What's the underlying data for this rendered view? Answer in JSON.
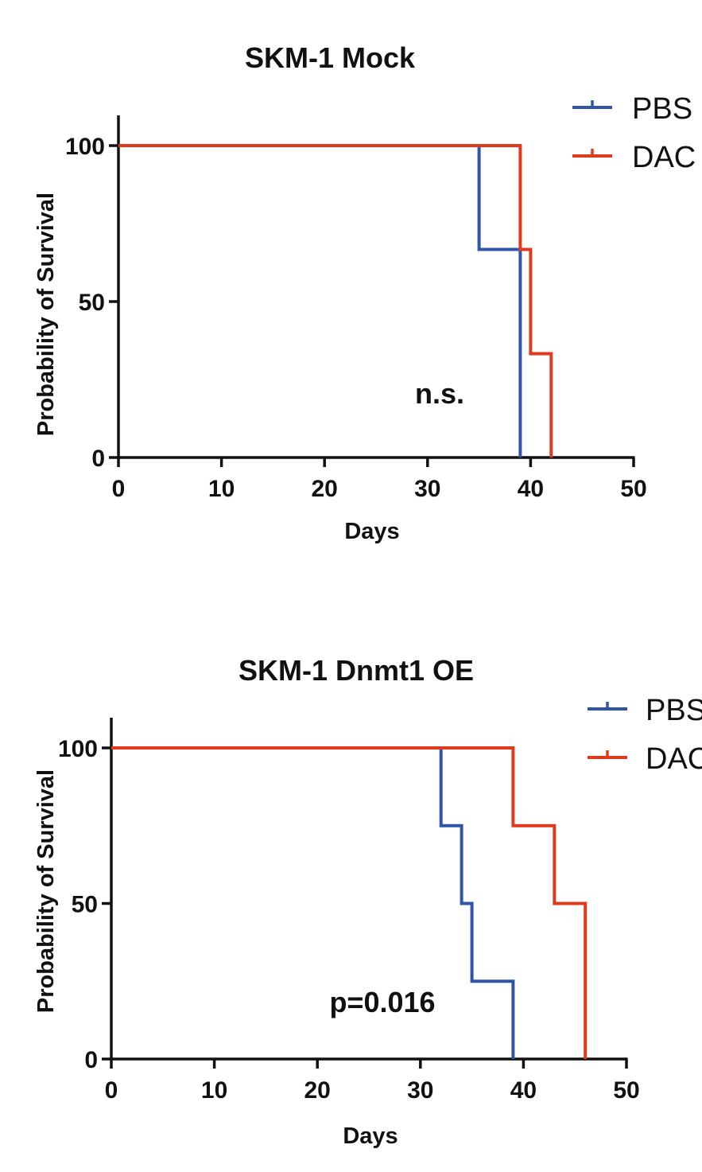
{
  "chart_data": [
    {
      "type": "line",
      "subtype": "kaplan-meier-step",
      "title": "SKM-1 Mock",
      "xlabel": "Days",
      "ylabel": "Probability of Survival",
      "xlim": [
        0,
        50
      ],
      "ylim": [
        0,
        100
      ],
      "xticks": [
        "0",
        "10",
        "20",
        "30",
        "40",
        "50"
      ],
      "yticks": [
        "0",
        "50",
        "100"
      ],
      "legend_position": "top-right",
      "annotation": "n.s.",
      "series": [
        {
          "name": "PBS",
          "color": "#2f54a8",
          "points": [
            [
              0,
              100
            ],
            [
              35,
              100
            ],
            [
              35,
              66.7
            ],
            [
              39,
              66.7
            ],
            [
              39,
              0
            ]
          ]
        },
        {
          "name": "DAC",
          "color": "#e03a1e",
          "points": [
            [
              0,
              100
            ],
            [
              39,
              100
            ],
            [
              39,
              66.7
            ],
            [
              40,
              66.7
            ],
            [
              40,
              33.3
            ],
            [
              42,
              33.3
            ],
            [
              42,
              0
            ]
          ]
        }
      ]
    },
    {
      "type": "line",
      "subtype": "kaplan-meier-step",
      "title": "SKM-1 Dnmt1 OE",
      "xlabel": "Days",
      "ylabel": "Probability of Survival",
      "xlim": [
        0,
        50
      ],
      "ylim": [
        0,
        100
      ],
      "xticks": [
        "0",
        "10",
        "20",
        "30",
        "40",
        "50"
      ],
      "yticks": [
        "0",
        "50",
        "100"
      ],
      "legend_position": "top-right",
      "annotation": "p=0.016",
      "series": [
        {
          "name": "PBS",
          "color": "#2f54a8",
          "points": [
            [
              0,
              100
            ],
            [
              32,
              100
            ],
            [
              32,
              75
            ],
            [
              34,
              75
            ],
            [
              34,
              50
            ],
            [
              35,
              50
            ],
            [
              35,
              25
            ],
            [
              39,
              25
            ],
            [
              39,
              0
            ]
          ]
        },
        {
          "name": "DAC",
          "color": "#e03a1e",
          "points": [
            [
              0,
              100
            ],
            [
              39,
              100
            ],
            [
              39,
              75
            ],
            [
              43,
              75
            ],
            [
              43,
              50
            ],
            [
              46,
              50
            ],
            [
              46,
              0
            ]
          ]
        }
      ]
    }
  ]
}
